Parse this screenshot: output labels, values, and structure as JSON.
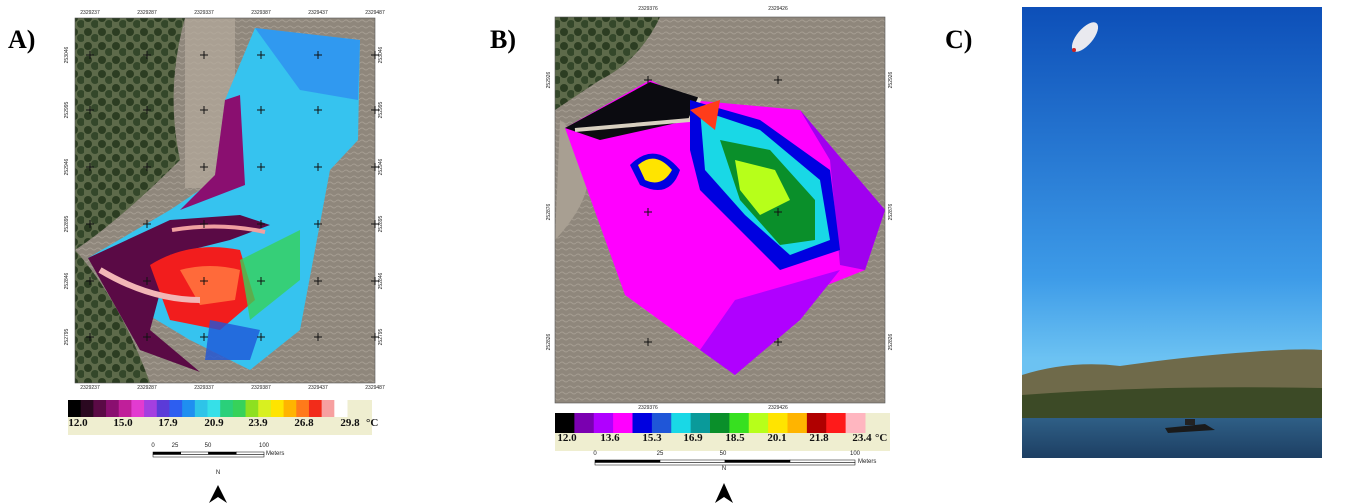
{
  "panels": [
    {
      "label": "A)",
      "x_labels_top": [
        "2329237",
        "2329287",
        "2329337",
        "2329387",
        "2329437",
        "2329487"
      ],
      "x_labels_bottom": [
        "2329237",
        "2329287",
        "2329337",
        "2329387",
        "2329437",
        "2329487"
      ],
      "y_labels_left": [
        "253046",
        "252995",
        "252946",
        "252895",
        "252846",
        "252795"
      ],
      "y_labels_right": [
        "253046",
        "252995",
        "252946",
        "252895",
        "252846",
        "252795"
      ],
      "legend_labels": [
        "12.0",
        "15.0",
        "17.9",
        "20.9",
        "23.9",
        "26.8",
        "29.8"
      ],
      "legend_unit": "°C",
      "scale_labels": [
        "0",
        "25",
        "50",
        "100"
      ],
      "scale_unit": "Meters",
      "north": "N"
    },
    {
      "label": "B)",
      "x_labels_top": [
        "2329376",
        "2329426"
      ],
      "x_labels_bottom": [
        "2329376",
        "2329426"
      ],
      "y_labels_left": [
        "252926",
        "252876",
        "252826"
      ],
      "y_labels_right": [
        "252926",
        "252876",
        "252826"
      ],
      "legend_labels": [
        "12.0",
        "13.6",
        "15.3",
        "16.9",
        "18.5",
        "20.1",
        "21.8",
        "23.4"
      ],
      "legend_unit": "°C",
      "scale_labels": [
        "0",
        "25",
        "50",
        "100"
      ],
      "scale_unit": "Meters",
      "north": "N"
    },
    {
      "label": "C)"
    }
  ]
}
